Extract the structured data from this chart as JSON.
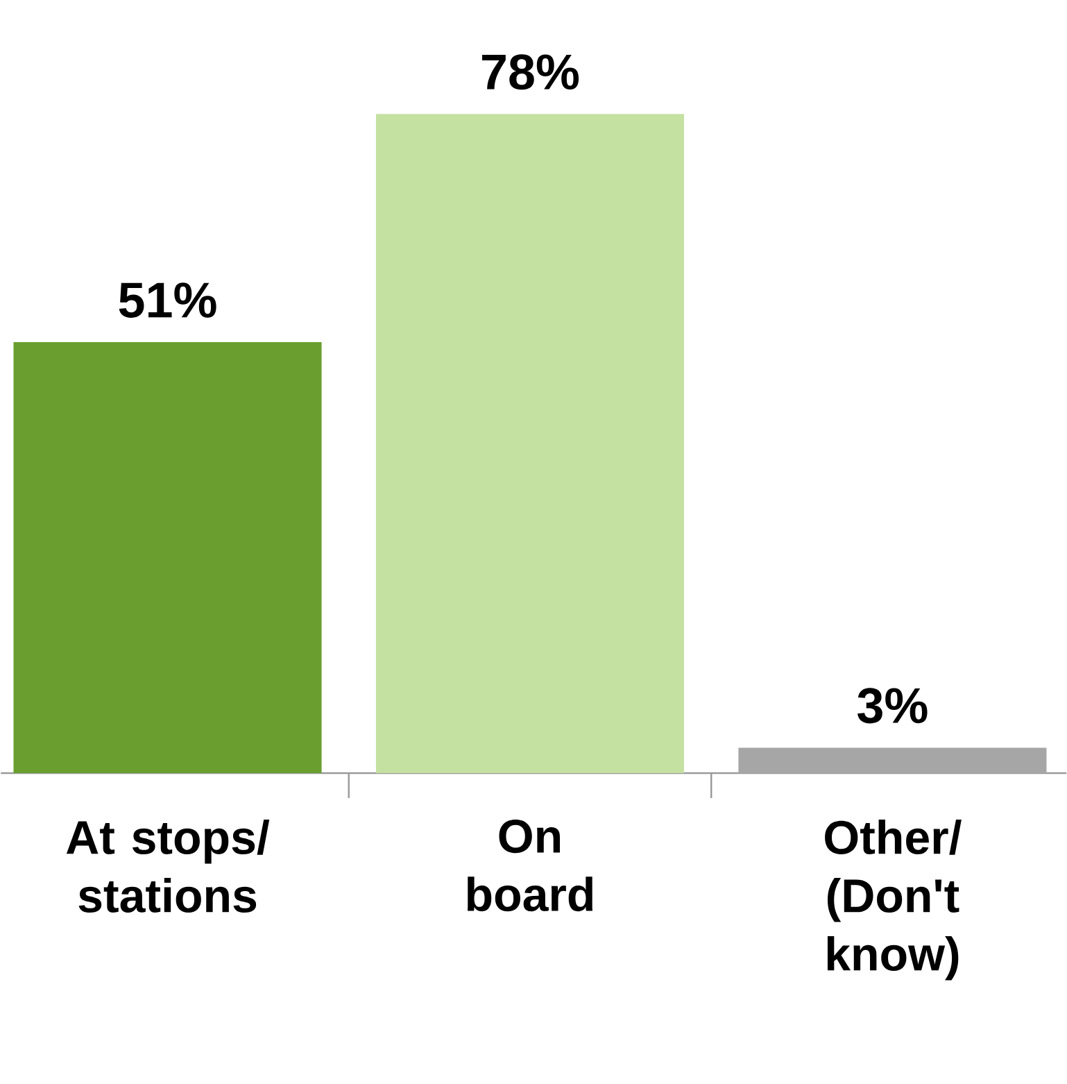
{
  "chart_data": {
    "type": "bar",
    "categories": [
      "At stops/ stations",
      "On board",
      "Other/ (Don't know)"
    ],
    "values": [
      51,
      78,
      3
    ],
    "colors": [
      "#6a9e2f",
      "#c5e1a1",
      "#a6a6a6"
    ],
    "value_labels": [
      "51%",
      "78%",
      "3%"
    ]
  }
}
